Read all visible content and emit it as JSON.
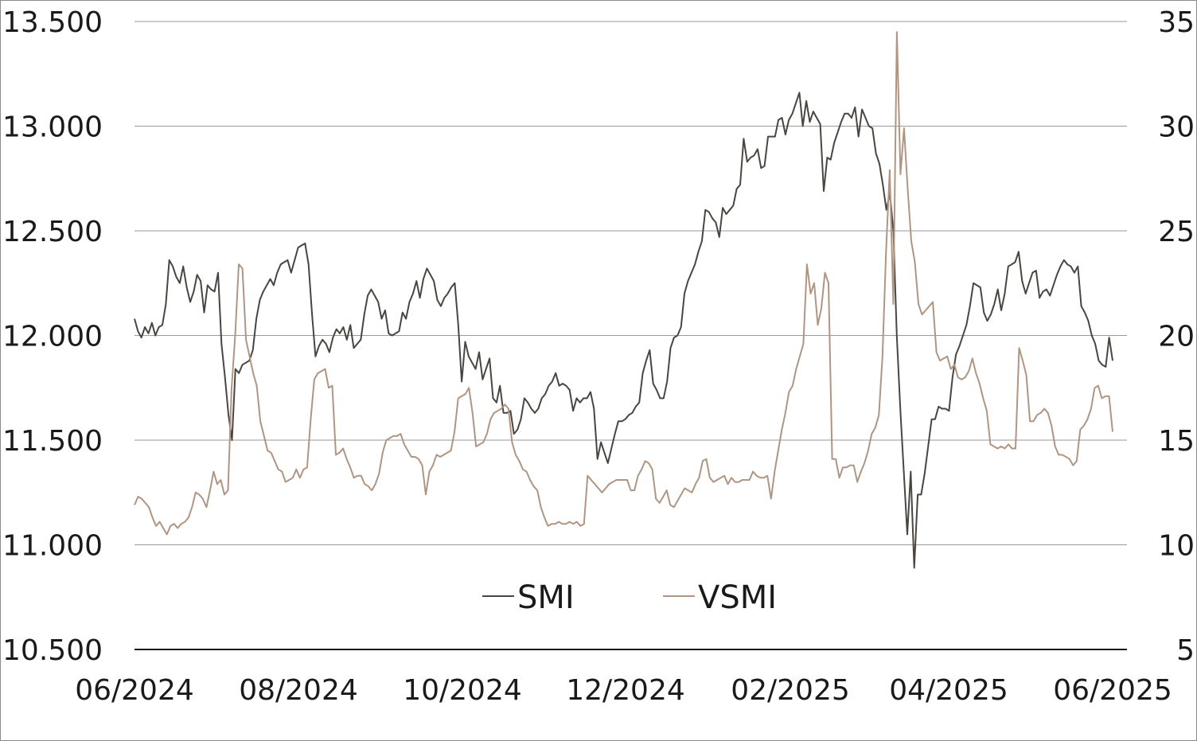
{
  "chart_data": {
    "type": "line",
    "title": "",
    "xlabel": "",
    "ylabel": "",
    "x_ticks": [
      "06/2024",
      "08/2024",
      "10/2024",
      "12/2024",
      "02/2025",
      "04/2025",
      "06/2025"
    ],
    "y_left_ticks": [
      "13.500",
      "13.000",
      "12.500",
      "12.000",
      "11.500",
      "11.000",
      "10.500"
    ],
    "y_right_ticks": [
      "35",
      "30",
      "25",
      "20",
      "15",
      "10",
      "5"
    ],
    "ylim_left": [
      10500,
      13500
    ],
    "ylim_right": [
      5,
      35
    ],
    "legend_position": "bottom-center",
    "grid": "horizontal",
    "series": [
      {
        "name": "SMI",
        "axis": "left",
        "color": "#4a4540",
        "values": [
          12080,
          12020,
          11990,
          12040,
          12010,
          12060,
          12000,
          12040,
          12050,
          12150,
          12360,
          12330,
          12280,
          12250,
          12330,
          12230,
          12160,
          12210,
          12290,
          12260,
          12110,
          12240,
          12220,
          12210,
          12300,
          11960,
          11800,
          11620,
          11500,
          11840,
          11820,
          11860,
          11870,
          11880,
          11930,
          12080,
          12170,
          12210,
          12240,
          12270,
          12240,
          12300,
          12340,
          12350,
          12360,
          12300,
          12360,
          12420,
          12430,
          12440,
          12340,
          12100,
          11900,
          11950,
          11980,
          11960,
          11920,
          11990,
          12030,
          12010,
          12040,
          11980,
          12050,
          11940,
          11960,
          11980,
          12100,
          12190,
          12220,
          12190,
          12160,
          12080,
          12120,
          12010,
          12000,
          12010,
          12020,
          12110,
          12080,
          12160,
          12200,
          12260,
          12180,
          12270,
          12320,
          12290,
          12260,
          12170,
          12140,
          12180,
          12200,
          12230,
          12250,
          12050,
          11780,
          11970,
          11900,
          11870,
          11840,
          11920,
          11790,
          11840,
          11890,
          11700,
          11680,
          11760,
          11630,
          11630,
          11640,
          11530,
          11550,
          11600,
          11700,
          11680,
          11650,
          11630,
          11650,
          11700,
          11720,
          11760,
          11780,
          11820,
          11760,
          11770,
          11760,
          11740,
          11640,
          11700,
          11680,
          11700,
          11700,
          11730,
          11650,
          11410,
          11490,
          11440,
          11390,
          11460,
          11530,
          11590,
          11590,
          11600,
          11620,
          11630,
          11660,
          11680,
          11820,
          11880,
          11930,
          11770,
          11740,
          11700,
          11700,
          11780,
          11940,
          11990,
          12000,
          12040,
          12200,
          12260,
          12300,
          12340,
          12400,
          12450,
          12600,
          12590,
          12560,
          12540,
          12470,
          12610,
          12580,
          12600,
          12620,
          12700,
          12720,
          12940,
          12830,
          12850,
          12860,
          12890,
          12800,
          12810,
          12950,
          12950,
          12950,
          13030,
          13040,
          12960,
          13030,
          13060,
          13110,
          13160,
          13000,
          13120,
          13020,
          13070,
          13040,
          13010,
          12690,
          12850,
          12840,
          12920,
          12970,
          13020,
          13060,
          13060,
          13040,
          13090,
          12950,
          13080,
          13040,
          13000,
          12990,
          12870,
          12820,
          12720,
          12600,
          12680,
          12500,
          12000,
          11650,
          11350,
          11050,
          11350,
          10890,
          11240,
          11240,
          11340,
          11470,
          11600,
          11600,
          11660,
          11650,
          11650,
          11640,
          11800,
          11910,
          11950,
          12000,
          12050,
          12140,
          12250,
          12240,
          12230,
          12110,
          12070,
          12100,
          12150,
          12220,
          12120,
          12200,
          12330,
          12340,
          12350,
          12400,
          12260,
          12200,
          12250,
          12300,
          12310,
          12180,
          12210,
          12220,
          12190,
          12240,
          12290,
          12330,
          12360,
          12340,
          12330,
          12300,
          12330,
          12140,
          12110,
          12070,
          12000,
          11960,
          11880,
          11860,
          11850,
          11990,
          11880
        ]
      },
      {
        "name": "VSMI",
        "axis": "right",
        "color": "#b09582",
        "values": [
          11.9,
          12.3,
          12.2,
          12.0,
          11.8,
          11.3,
          10.9,
          11.1,
          10.8,
          10.5,
          10.9,
          11.0,
          10.8,
          11.0,
          11.1,
          11.3,
          11.8,
          12.5,
          12.4,
          12.2,
          11.8,
          12.6,
          13.5,
          12.9,
          13.1,
          12.4,
          12.6,
          17.5,
          20.0,
          23.4,
          23.2,
          19.8,
          19.0,
          18.2,
          17.6,
          15.9,
          15.2,
          14.5,
          14.4,
          14.0,
          13.6,
          13.5,
          13.0,
          13.1,
          13.2,
          13.6,
          13.2,
          13.6,
          13.7,
          16.0,
          17.9,
          18.2,
          18.3,
          18.4,
          17.5,
          17.6,
          14.3,
          14.4,
          14.6,
          14.1,
          13.7,
          13.2,
          13.3,
          13.3,
          12.9,
          12.8,
          12.6,
          12.9,
          13.4,
          14.4,
          15.0,
          15.1,
          15.2,
          15.2,
          15.3,
          14.8,
          14.5,
          14.2,
          14.2,
          14.1,
          13.8,
          12.4,
          13.5,
          13.8,
          14.3,
          14.2,
          14.3,
          14.4,
          14.5,
          15.4,
          17.0,
          17.1,
          17.2,
          17.5,
          16.3,
          14.7,
          14.8,
          14.9,
          15.3,
          16.0,
          16.3,
          16.4,
          16.5,
          16.7,
          16.5,
          14.9,
          14.3,
          14.0,
          13.6,
          13.5,
          13.1,
          12.8,
          12.6,
          11.8,
          11.3,
          10.9,
          11.0,
          11.0,
          11.1,
          11.0,
          11.0,
          11.1,
          11.0,
          11.1,
          10.9,
          11.0,
          13.3,
          13.1,
          12.9,
          12.7,
          12.5,
          12.7,
          12.9,
          13.0,
          13.1,
          13.1,
          13.1,
          13.1,
          12.6,
          12.6,
          13.3,
          13.6,
          14.0,
          13.9,
          13.6,
          12.2,
          12.0,
          12.3,
          12.6,
          11.9,
          11.8,
          12.1,
          12.4,
          12.7,
          12.6,
          12.5,
          12.9,
          13.2,
          14.0,
          14.1,
          13.2,
          13.0,
          13.1,
          13.2,
          13.3,
          12.9,
          13.2,
          13.0,
          13.0,
          13.1,
          13.1,
          13.1,
          13.5,
          13.3,
          13.2,
          13.2,
          13.3,
          12.2,
          13.5,
          14.5,
          15.5,
          16.3,
          17.3,
          17.6,
          18.4,
          19.0,
          19.6,
          23.4,
          22.0,
          22.5,
          20.5,
          21.3,
          23.0,
          22.5,
          14.1,
          14.1,
          13.2,
          13.7,
          13.7,
          13.8,
          13.8,
          13.0,
          13.5,
          13.9,
          14.5,
          15.3,
          15.6,
          16.2,
          19.0,
          24.0,
          27.9,
          21.5,
          34.5,
          27.7,
          29.9,
          27.0,
          24.5,
          23.5,
          21.5,
          21.0,
          21.2,
          21.4,
          21.6,
          19.2,
          18.8,
          18.9,
          19.0,
          18.4,
          18.6,
          18.0,
          17.9,
          18.0,
          18.3,
          18.9,
          18.2,
          17.7,
          17.0,
          16.4,
          14.8,
          14.7,
          14.6,
          14.7,
          14.6,
          14.8,
          14.6,
          14.6,
          19.4,
          18.8,
          18.1,
          15.9,
          15.9,
          16.2,
          16.3,
          16.5,
          16.3,
          15.7,
          14.7,
          14.3,
          14.3,
          14.2,
          14.1,
          13.8,
          14.0,
          15.5,
          15.7,
          16.0,
          16.5,
          17.5,
          17.6,
          17.0,
          17.1,
          17.1,
          15.4
        ]
      }
    ]
  }
}
